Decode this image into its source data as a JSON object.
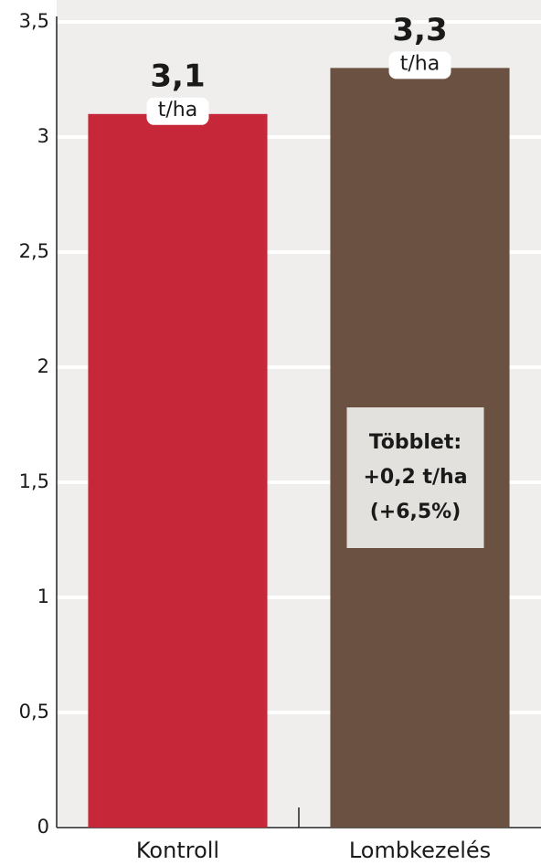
{
  "chart_data": {
    "type": "bar",
    "categories": [
      "Kontroll",
      "Lombkezelés"
    ],
    "values": [
      3.1,
      3.3
    ],
    "value_labels": [
      "3,1",
      "3,3"
    ],
    "value_unit": "t/ha",
    "colors": [
      "#c6283a",
      "#6a5142"
    ],
    "ylim": [
      0,
      3.5
    ],
    "yticks": [
      0,
      {
        "value": 0.5,
        "label": "0,5"
      },
      1,
      {
        "value": 1.5,
        "label": "1,5"
      },
      2,
      {
        "value": 2.5,
        "label": "2,5"
      },
      3,
      {
        "value": 3.5,
        "label": "3,5"
      }
    ],
    "grid": true,
    "annotation": {
      "lines": [
        "Többlet:",
        "+0,2 t/ha",
        "(+6,5%)"
      ]
    }
  }
}
